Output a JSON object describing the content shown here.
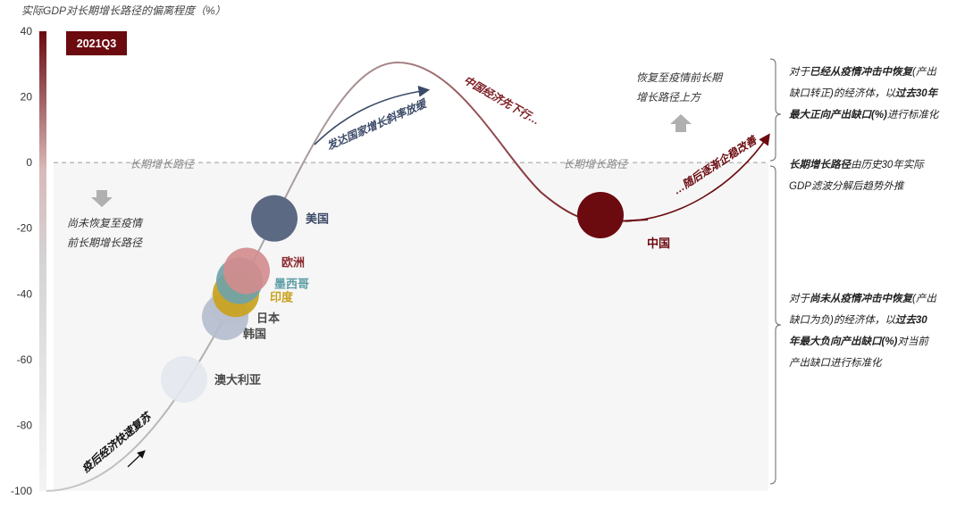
{
  "chart_data": {
    "type": "scatter",
    "ylabel": "实际GDP对长期增长路径的偏离程度（%）",
    "yticks": [
      40,
      20,
      0,
      -20,
      -40,
      -60,
      -80,
      -100
    ],
    "ylim": [
      -100,
      40
    ],
    "period_badge": "2021Q3",
    "baseline_label": "长期增长路径",
    "points": [
      {
        "name": "美国",
        "y": -17,
        "color": "#5c6983"
      },
      {
        "name": "欧洲",
        "y": -33,
        "color": "#d28c8e"
      },
      {
        "name": "墨西哥",
        "y": -36,
        "color": "#6fa3a8"
      },
      {
        "name": "印度",
        "y": -40,
        "color": "#c9a21c"
      },
      {
        "name": "日本",
        "y": -47,
        "color": "#b5bdcd"
      },
      {
        "name": "韩国",
        "y": -43,
        "color": "#e0e3ea"
      },
      {
        "name": "澳大利亚",
        "y": -66,
        "color": "#e4e7ee"
      },
      {
        "name": "中国",
        "y": -16,
        "color": "#6b0a0f"
      }
    ],
    "arrow_labels": {
      "recovery": "疫后经济快速复苏",
      "developed_slow": "发达国家增长斜率放缓",
      "china_first": "中国经济先下行…",
      "china_later": "…随后逐渐企稳改善"
    },
    "annotations": {
      "below_path": [
        "尚未恢复至疫情",
        "前长期增长路径"
      ],
      "above_path": [
        "恢复至疫情前长期",
        "增长路径上方"
      ]
    }
  },
  "notes": {
    "positive_gap": [
      {
        "text": "对于",
        "bold": false
      },
      {
        "text": "已经从疫情冲击中恢复",
        "bold": true
      },
      {
        "text": "(产出",
        "bold": false
      },
      {
        "text": "缺口转正)的经济体，以",
        "bold": false
      },
      {
        "text": "过去30年",
        "bold": true
      },
      {
        "text": "最大正向产出缺口(%)",
        "bold": true
      },
      {
        "text": "进行标准化",
        "bold": false
      }
    ],
    "trend": [
      {
        "text": "长期增长路径",
        "bold": true
      },
      {
        "text": "由历史30年实际",
        "bold": false
      },
      {
        "text": "GDP滤波分解后趋势外推",
        "bold": false
      }
    ],
    "negative_gap": [
      {
        "text": "对于",
        "bold": false
      },
      {
        "text": "尚未从疫情冲击中恢复",
        "bold": true
      },
      {
        "text": "(产出",
        "bold": false
      },
      {
        "text": "缺口为负)的经济体，以",
        "bold": false
      },
      {
        "text": "过去30",
        "bold": true
      },
      {
        "text": "年最大负向产出缺口(%)",
        "bold": true
      },
      {
        "text": "对当前",
        "bold": false
      },
      {
        "text": "产出缺口进行标准化",
        "bold": false
      }
    ]
  },
  "colors": {
    "china_red": "#6b0a0f",
    "accent_red": "#7a1a20",
    "navy": "#3b4a68",
    "baseline": "#9a9a9a"
  }
}
